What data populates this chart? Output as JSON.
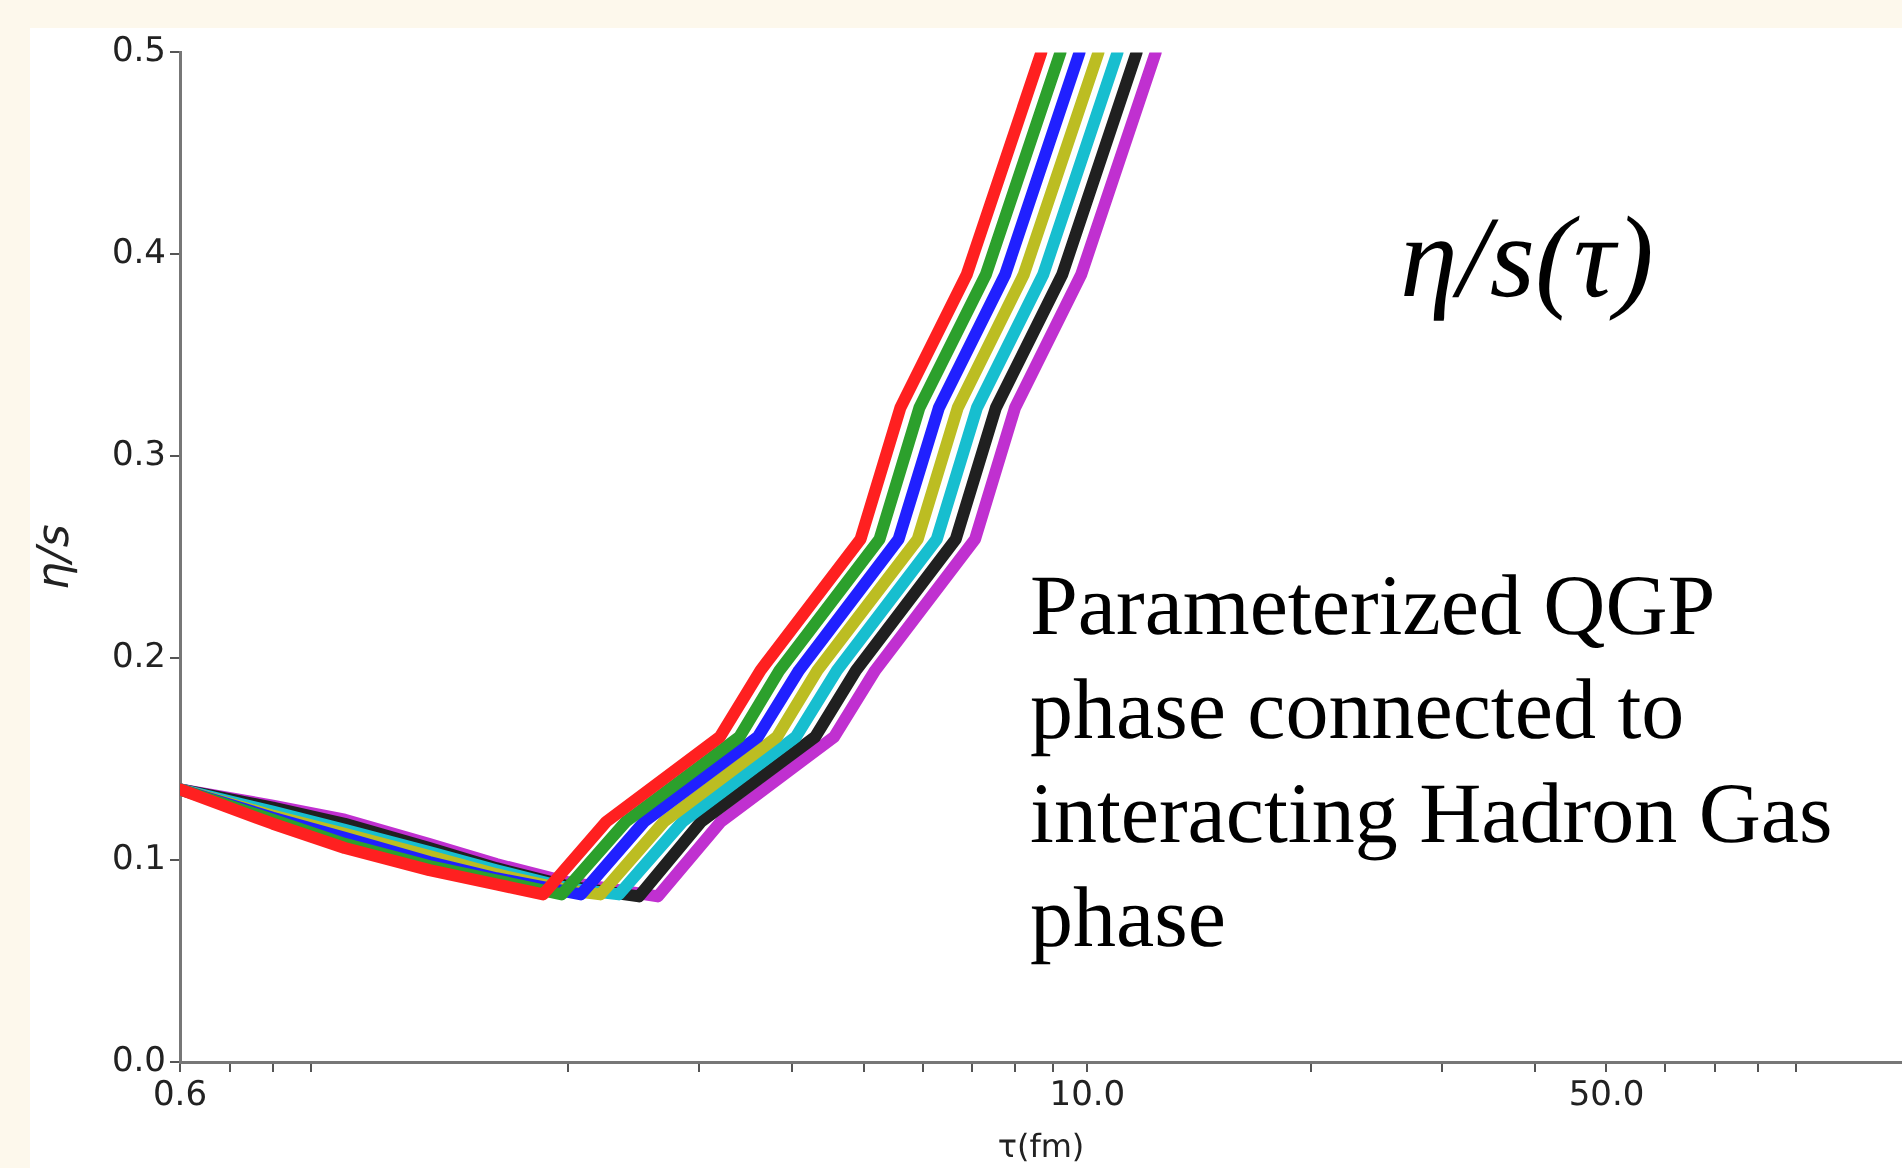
{
  "chart_data": {
    "type": "line",
    "xlabel": "τ(fm)",
    "ylabel": "η/s",
    "log": "x",
    "grid": false,
    "legend": false,
    "marker": "none",
    "line_style": "solid",
    "xlim": [
      0.6,
      125
    ],
    "xticks": [
      0.6,
      {
        "value": 0.7,
        "label": null
      },
      {
        "value": 0.8,
        "label": null
      },
      {
        "value": 0.9,
        "label": null
      },
      {
        "value": 2,
        "label": null
      },
      {
        "value": 3,
        "label": null
      },
      {
        "value": 4,
        "label": null
      },
      {
        "value": 5,
        "label": null
      },
      {
        "value": 6,
        "label": null
      },
      {
        "value": 7,
        "label": null
      },
      {
        "value": 8,
        "label": null
      },
      {
        "value": 9,
        "label": null
      },
      {
        "value": 10,
        "label": "10.0"
      },
      {
        "value": 20,
        "label": null
      },
      {
        "value": 30,
        "label": null
      },
      {
        "value": 40,
        "label": null
      },
      {
        "value": 50,
        "label": "50.0"
      },
      {
        "value": 60,
        "label": null
      },
      {
        "value": 70,
        "label": null
      },
      {
        "value": 80,
        "label": null
      },
      {
        "value": 90,
        "label": null
      }
    ],
    "ylim": [
      0,
      0.5
    ],
    "yticks": [
      {
        "value": 0,
        "label": "0.0"
      },
      0.1,
      0.2,
      0.3,
      0.4,
      0.5
    ],
    "annotations": [
      "η/s(τ)",
      "Parameterized QGP phase connected to interacting Hadron Gas phase"
    ],
    "series": [
      {
        "color": "#ff2020",
        "x": [
          0.6,
          0.8,
          1.0,
          1.3,
          1.6,
          1.85,
          2.25,
          3.2,
          3.63,
          4.95,
          5.6,
          6.88,
          8.67
        ],
        "values": [
          0.135,
          0.118,
          0.106,
          0.095,
          0.088,
          0.083,
          0.119,
          0.161,
          0.194,
          0.259,
          0.324,
          0.39,
          0.5
        ]
      },
      {
        "color": "#2ca02c",
        "x": [
          0.6,
          0.8,
          1.0,
          1.3,
          1.6,
          1.96,
          2.39,
          3.4,
          3.85,
          5.25,
          5.94,
          7.3,
          9.2
        ],
        "values": [
          0.135,
          0.12,
          0.108,
          0.097,
          0.09,
          0.083,
          0.119,
          0.161,
          0.194,
          0.259,
          0.324,
          0.39,
          0.5
        ]
      },
      {
        "color": "#2020ff",
        "x": [
          0.6,
          0.8,
          1.0,
          1.3,
          1.6,
          2.08,
          2.53,
          3.6,
          4.09,
          5.57,
          6.31,
          7.75,
          9.76
        ],
        "values": [
          0.135,
          0.121,
          0.111,
          0.099,
          0.091,
          0.083,
          0.119,
          0.161,
          0.194,
          0.259,
          0.324,
          0.39,
          0.5
        ]
      },
      {
        "color": "#bcbd22",
        "x": [
          0.6,
          0.8,
          1.0,
          1.3,
          1.6,
          2.0,
          2.21,
          2.69,
          3.82,
          4.33,
          5.91,
          6.69,
          8.21,
          10.35
        ],
        "values": [
          0.135,
          0.122,
          0.113,
          0.102,
          0.093,
          0.085,
          0.083,
          0.119,
          0.161,
          0.194,
          0.259,
          0.324,
          0.39,
          0.5
        ]
      },
      {
        "color": "#17becf",
        "x": [
          0.6,
          0.8,
          1.0,
          1.3,
          1.6,
          2.0,
          2.34,
          2.85,
          4.05,
          4.6,
          6.27,
          7.1,
          8.72,
          10.98
        ],
        "values": [
          0.135,
          0.124,
          0.115,
          0.104,
          0.095,
          0.086,
          0.083,
          0.119,
          0.161,
          0.194,
          0.259,
          0.324,
          0.39,
          0.5
        ]
      },
      {
        "color": "#202020",
        "x": [
          0.6,
          0.8,
          1.0,
          1.3,
          1.6,
          2.0,
          2.49,
          3.02,
          4.3,
          4.88,
          6.65,
          7.53,
          9.25,
          11.65
        ],
        "values": [
          0.135,
          0.126,
          0.118,
          0.106,
          0.096,
          0.087,
          0.082,
          0.119,
          0.161,
          0.194,
          0.259,
          0.324,
          0.39,
          0.5
        ]
      },
      {
        "color": "#c030d0",
        "x": [
          0.6,
          0.8,
          1.0,
          1.3,
          1.6,
          2.0,
          2.64,
          3.21,
          4.56,
          5.18,
          7.06,
          7.99,
          9.81,
          12.36
        ],
        "values": [
          0.135,
          0.127,
          0.12,
          0.108,
          0.098,
          0.089,
          0.082,
          0.119,
          0.161,
          0.194,
          0.259,
          0.324,
          0.39,
          0.5
        ]
      }
    ]
  }
}
